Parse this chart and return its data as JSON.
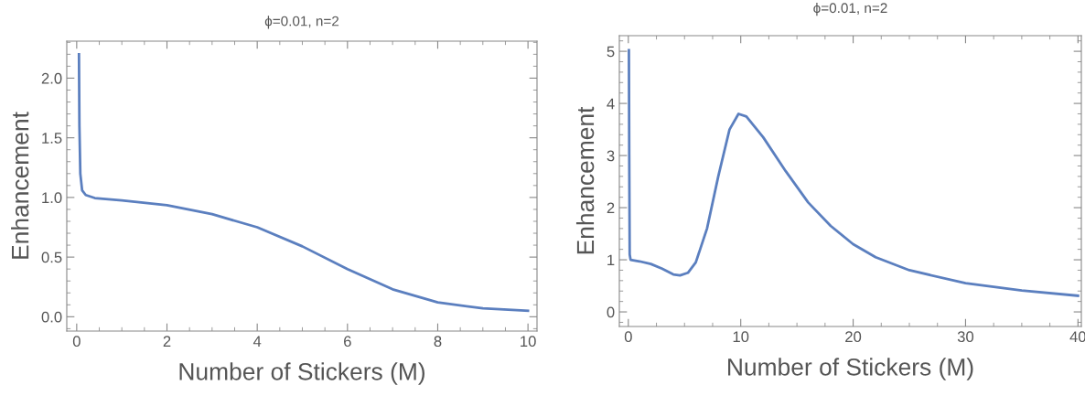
{
  "chart_data": [
    {
      "type": "line",
      "title": "ϕ=0.01, n=2",
      "xlabel": "Number of Stickers (M)",
      "ylabel": "Enhancement",
      "xlim": [
        -0.22,
        10.2
      ],
      "ylim": [
        -0.12,
        2.31
      ],
      "xticks": [
        0,
        2,
        4,
        6,
        8,
        10
      ],
      "yticks": [
        {
          "value": 0,
          "label": "0.0"
        },
        {
          "value": 0.5,
          "label": "0.5"
        },
        {
          "value": 1,
          "label": "1.0"
        },
        {
          "value": 1.5,
          "label": "1.5"
        },
        {
          "value": 2,
          "label": "2.0"
        }
      ],
      "grid": false,
      "legend": false,
      "series": [
        {
          "color": "#5b7fbf",
          "x": [
            0.05,
            0.06,
            0.08,
            0.12,
            0.2,
            0.4,
            1,
            2,
            3,
            4,
            5,
            6,
            7,
            8,
            9,
            10
          ],
          "values": [
            2.2,
            1.6,
            1.2,
            1.06,
            1.02,
            0.995,
            0.975,
            0.935,
            0.86,
            0.75,
            0.59,
            0.4,
            0.23,
            0.12,
            0.07,
            0.05
          ]
        }
      ]
    },
    {
      "type": "line",
      "title": "ϕ=0.01, n=2",
      "xlabel": "Number of Stickers (M)",
      "ylabel": "Enhancement",
      "xlim": [
        -0.8,
        40.3
      ],
      "ylim": [
        -0.28,
        5.3
      ],
      "xticks": [
        0,
        10,
        20,
        30,
        40
      ],
      "yticks": [
        0,
        1,
        2,
        3,
        4,
        5
      ],
      "grid": false,
      "legend": false,
      "series": [
        {
          "color": "#5b7fbf",
          "x": [
            0.05,
            0.08,
            0.12,
            0.2,
            1,
            2,
            3,
            4,
            4.6,
            5.3,
            6,
            7,
            8,
            9,
            9.8,
            10.5,
            12,
            14,
            16,
            18,
            20,
            22,
            25,
            30,
            35,
            40
          ],
          "values": [
            5.02,
            3,
            1.1,
            1.0,
            0.97,
            0.92,
            0.83,
            0.72,
            0.7,
            0.75,
            0.95,
            1.6,
            2.6,
            3.5,
            3.8,
            3.75,
            3.35,
            2.7,
            2.1,
            1.65,
            1.3,
            1.05,
            0.8,
            0.55,
            0.41,
            0.31
          ]
        }
      ]
    }
  ]
}
